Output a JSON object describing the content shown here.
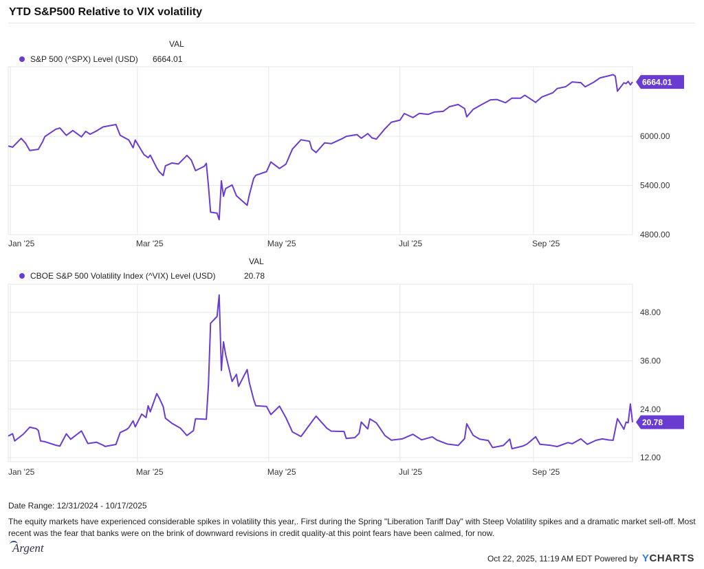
{
  "header": {
    "title": "YTD S&P500 Relative to VIX volatility"
  },
  "chart_data": [
    {
      "type": "line",
      "title": "YTD S&P500 Relative to VIX volatility",
      "value_header": "VAL",
      "series": [
        {
          "name": "S&P 500 (^SPX) Level (USD)",
          "last_value": "6664.01",
          "values": [
            [
              "2024-12-31",
              5882
            ],
            [
              "2025-01-02",
              5868
            ],
            [
              "2025-01-06",
              5975
            ],
            [
              "2025-01-08",
              5918
            ],
            [
              "2025-01-10",
              5827
            ],
            [
              "2025-01-14",
              5842
            ],
            [
              "2025-01-16",
              5937
            ],
            [
              "2025-01-17",
              5996
            ],
            [
              "2025-01-22",
              6086
            ],
            [
              "2025-01-24",
              6101
            ],
            [
              "2025-01-27",
              6012
            ],
            [
              "2025-01-30",
              6071
            ],
            [
              "2025-02-03",
              5994
            ],
            [
              "2025-02-05",
              6061
            ],
            [
              "2025-02-07",
              6026
            ],
            [
              "2025-02-10",
              6066
            ],
            [
              "2025-02-13",
              6115
            ],
            [
              "2025-02-19",
              6144
            ],
            [
              "2025-02-21",
              6013
            ],
            [
              "2025-02-25",
              5955
            ],
            [
              "2025-02-27",
              5861
            ],
            [
              "2025-02-28",
              5955
            ],
            [
              "2025-03-04",
              5778
            ],
            [
              "2025-03-06",
              5739
            ],
            [
              "2025-03-07",
              5770
            ],
            [
              "2025-03-10",
              5614
            ],
            [
              "2025-03-11",
              5572
            ],
            [
              "2025-03-13",
              5521
            ],
            [
              "2025-03-14",
              5639
            ],
            [
              "2025-03-17",
              5675
            ],
            [
              "2025-03-20",
              5662
            ],
            [
              "2025-03-24",
              5767
            ],
            [
              "2025-03-26",
              5712
            ],
            [
              "2025-03-28",
              5581
            ],
            [
              "2025-04-01",
              5633
            ],
            [
              "2025-04-02",
              5670
            ],
            [
              "2025-04-03",
              5396
            ],
            [
              "2025-04-04",
              5074
            ],
            [
              "2025-04-07",
              5062
            ],
            [
              "2025-04-08",
              4982
            ],
            [
              "2025-04-09",
              5457
            ],
            [
              "2025-04-10",
              5268
            ],
            [
              "2025-04-11",
              5363
            ],
            [
              "2025-04-14",
              5406
            ],
            [
              "2025-04-16",
              5275
            ],
            [
              "2025-04-21",
              5158
            ],
            [
              "2025-04-22",
              5287
            ],
            [
              "2025-04-24",
              5484
            ],
            [
              "2025-04-25",
              5525
            ],
            [
              "2025-04-30",
              5569
            ],
            [
              "2025-05-02",
              5687
            ],
            [
              "2025-05-06",
              5607
            ],
            [
              "2025-05-09",
              5660
            ],
            [
              "2025-05-12",
              5844
            ],
            [
              "2025-05-16",
              5958
            ],
            [
              "2025-05-20",
              5940
            ],
            [
              "2025-05-21",
              5845
            ],
            [
              "2025-05-23",
              5802
            ],
            [
              "2025-05-27",
              5921
            ],
            [
              "2025-05-30",
              5911
            ],
            [
              "2025-06-04",
              5970
            ],
            [
              "2025-06-06",
              6000
            ],
            [
              "2025-06-11",
              6022
            ],
            [
              "2025-06-13",
              5977
            ],
            [
              "2025-06-16",
              6033
            ],
            [
              "2025-06-18",
              5981
            ],
            [
              "2025-06-20",
              5967
            ],
            [
              "2025-06-24",
              6092
            ],
            [
              "2025-06-27",
              6173
            ],
            [
              "2025-07-01",
              6198
            ],
            [
              "2025-07-03",
              6279
            ],
            [
              "2025-07-07",
              6229
            ],
            [
              "2025-07-10",
              6280
            ],
            [
              "2025-07-14",
              6268
            ],
            [
              "2025-07-17",
              6297
            ],
            [
              "2025-07-21",
              6305
            ],
            [
              "2025-07-24",
              6363
            ],
            [
              "2025-07-28",
              6389
            ],
            [
              "2025-07-31",
              6339
            ],
            [
              "2025-08-01",
              6238
            ],
            [
              "2025-08-04",
              6330
            ],
            [
              "2025-08-08",
              6389
            ],
            [
              "2025-08-12",
              6446
            ],
            [
              "2025-08-15",
              6450
            ],
            [
              "2025-08-19",
              6411
            ],
            [
              "2025-08-22",
              6467
            ],
            [
              "2025-08-26",
              6466
            ],
            [
              "2025-08-28",
              6502
            ],
            [
              "2025-09-02",
              6415
            ],
            [
              "2025-09-05",
              6482
            ],
            [
              "2025-09-10",
              6532
            ],
            [
              "2025-09-12",
              6584
            ],
            [
              "2025-09-16",
              6606
            ],
            [
              "2025-09-19",
              6664
            ],
            [
              "2025-09-23",
              6656
            ],
            [
              "2025-09-25",
              6605
            ],
            [
              "2025-09-29",
              6661
            ],
            [
              "2025-10-02",
              6715
            ],
            [
              "2025-10-06",
              6740
            ],
            [
              "2025-10-08",
              6753
            ],
            [
              "2025-10-09",
              6735
            ],
            [
              "2025-10-10",
              6552
            ],
            [
              "2025-10-13",
              6654
            ],
            [
              "2025-10-14",
              6644
            ],
            [
              "2025-10-15",
              6671
            ],
            [
              "2025-10-16",
              6629
            ],
            [
              "2025-10-17",
              6664.01
            ]
          ]
        }
      ],
      "x_ticks": [
        "Jan '25",
        "Mar '25",
        "May '25",
        "Jul '25",
        "Sep '25"
      ],
      "y_ticks": [
        "4800.00",
        "5400.00",
        "6000.00"
      ],
      "ylim": [
        4800,
        6850
      ],
      "xlim": [
        "2024-12-31",
        "2025-10-17"
      ],
      "grid": true
    },
    {
      "type": "line",
      "value_header": "VAL",
      "series": [
        {
          "name": "CBOE S&P 500 Volatility Index (^VIX) Level (USD)",
          "last_value": "20.78",
          "values": [
            [
              "2024-12-31",
              17.35
            ],
            [
              "2025-01-02",
              17.93
            ],
            [
              "2025-01-03",
              16.13
            ],
            [
              "2025-01-07",
              17.82
            ],
            [
              "2025-01-10",
              19.54
            ],
            [
              "2025-01-13",
              19.19
            ],
            [
              "2025-01-14",
              18.71
            ],
            [
              "2025-01-15",
              16.12
            ],
            [
              "2025-01-17",
              15.97
            ],
            [
              "2025-01-22",
              15.1
            ],
            [
              "2025-01-24",
              14.85
            ],
            [
              "2025-01-27",
              17.9
            ],
            [
              "2025-01-29",
              16.56
            ],
            [
              "2025-02-03",
              18.62
            ],
            [
              "2025-02-06",
              15.5
            ],
            [
              "2025-02-10",
              15.81
            ],
            [
              "2025-02-13",
              15.1
            ],
            [
              "2025-02-14",
              14.77
            ],
            [
              "2025-02-19",
              15.27
            ],
            [
              "2025-02-21",
              18.21
            ],
            [
              "2025-02-24",
              18.98
            ],
            [
              "2025-02-25",
              19.43
            ],
            [
              "2025-02-27",
              21.13
            ],
            [
              "2025-02-28",
              19.63
            ],
            [
              "2025-03-03",
              22.78
            ],
            [
              "2025-03-05",
              21.93
            ],
            [
              "2025-03-06",
              24.87
            ],
            [
              "2025-03-07",
              23.37
            ],
            [
              "2025-03-10",
              27.86
            ],
            [
              "2025-03-11",
              26.92
            ],
            [
              "2025-03-13",
              24.66
            ],
            [
              "2025-03-14",
              21.77
            ],
            [
              "2025-03-17",
              20.51
            ],
            [
              "2025-03-21",
              19.28
            ],
            [
              "2025-03-24",
              17.48
            ],
            [
              "2025-03-27",
              18.69
            ],
            [
              "2025-03-28",
              21.65
            ],
            [
              "2025-04-02",
              21.51
            ],
            [
              "2025-04-03",
              30.02
            ],
            [
              "2025-04-04",
              45.31
            ],
            [
              "2025-04-07",
              46.98
            ],
            [
              "2025-04-08",
              52.33
            ],
            [
              "2025-04-09",
              33.62
            ],
            [
              "2025-04-10",
              40.72
            ],
            [
              "2025-04-11",
              37.56
            ],
            [
              "2025-04-14",
              30.89
            ],
            [
              "2025-04-16",
              32.64
            ],
            [
              "2025-04-17",
              29.65
            ],
            [
              "2025-04-21",
              33.82
            ],
            [
              "2025-04-22",
              30.57
            ],
            [
              "2025-04-24",
              26.47
            ],
            [
              "2025-04-25",
              24.84
            ],
            [
              "2025-04-30",
              24.7
            ],
            [
              "2025-05-02",
              22.68
            ],
            [
              "2025-05-06",
              24.76
            ],
            [
              "2025-05-09",
              21.9
            ],
            [
              "2025-05-12",
              18.39
            ],
            [
              "2025-05-16",
              17.24
            ],
            [
              "2025-05-21",
              20.87
            ],
            [
              "2025-05-23",
              22.29
            ],
            [
              "2025-05-28",
              19.31
            ],
            [
              "2025-05-30",
              18.57
            ],
            [
              "2025-06-05",
              18.48
            ],
            [
              "2025-06-06",
              16.77
            ],
            [
              "2025-06-10",
              16.95
            ],
            [
              "2025-06-12",
              18.02
            ],
            [
              "2025-06-13",
              20.82
            ],
            [
              "2025-06-16",
              19.11
            ],
            [
              "2025-06-17",
              21.6
            ],
            [
              "2025-06-20",
              20.62
            ],
            [
              "2025-06-24",
              17.48
            ],
            [
              "2025-06-27",
              16.32
            ],
            [
              "2025-07-02",
              16.64
            ],
            [
              "2025-07-07",
              17.79
            ],
            [
              "2025-07-11",
              16.4
            ],
            [
              "2025-07-16",
              17.16
            ],
            [
              "2025-07-18",
              16.41
            ],
            [
              "2025-07-23",
              15.37
            ],
            [
              "2025-07-28",
              15.03
            ],
            [
              "2025-07-31",
              16.72
            ],
            [
              "2025-08-01",
              20.38
            ],
            [
              "2025-08-04",
              17.52
            ],
            [
              "2025-08-07",
              16.57
            ],
            [
              "2025-08-11",
              16.25
            ],
            [
              "2025-08-13",
              14.49
            ],
            [
              "2025-08-18",
              15.0
            ],
            [
              "2025-08-21",
              16.6
            ],
            [
              "2025-08-22",
              14.22
            ],
            [
              "2025-08-27",
              14.85
            ],
            [
              "2025-08-29",
              15.36
            ],
            [
              "2025-09-02",
              17.17
            ],
            [
              "2025-09-04",
              15.3
            ],
            [
              "2025-09-09",
              15.04
            ],
            [
              "2025-09-12",
              14.76
            ],
            [
              "2025-09-17",
              15.72
            ],
            [
              "2025-09-19",
              15.45
            ],
            [
              "2025-09-23",
              16.64
            ],
            [
              "2025-09-26",
              15.29
            ],
            [
              "2025-09-30",
              16.28
            ],
            [
              "2025-10-03",
              16.65
            ],
            [
              "2025-10-06",
              16.37
            ],
            [
              "2025-10-08",
              16.3
            ],
            [
              "2025-10-10",
              21.66
            ],
            [
              "2025-10-13",
              19.03
            ],
            [
              "2025-10-14",
              20.81
            ],
            [
              "2025-10-15",
              20.64
            ],
            [
              "2025-10-16",
              25.31
            ],
            [
              "2025-10-17",
              20.78
            ]
          ]
        }
      ],
      "x_ticks": [
        "Jan '25",
        "Mar '25",
        "May '25",
        "Jul '25",
        "Sep '25"
      ],
      "y_ticks": [
        "12.00",
        "24.00",
        "36.00",
        "48.00"
      ],
      "ylim": [
        11,
        55
      ],
      "xlim": [
        "2024-12-31",
        "2025-10-17"
      ],
      "grid": true
    }
  ],
  "footer": {
    "date_range": "Date Range: 12/31/2024 - 10/17/2025",
    "note": "The equity markets have experienced considerable spikes in volatility this year,. First during the Spring \"Liberation Tariff Day\" with Steep Volatility spikes and a dramatic market sell-off.  Most recent was the fear that banks were on the brink of downward revisions in credit quality-at this point fears have been calmed, for now.",
    "logo_text": "Argent",
    "timestamp": "Oct 22, 2025, 11:19 AM EDT Powered by",
    "brand_y": "Y",
    "brand_rest": "CHARTS"
  },
  "colors": {
    "series": "#6a3bd0",
    "grid": "#e6e6e6"
  }
}
